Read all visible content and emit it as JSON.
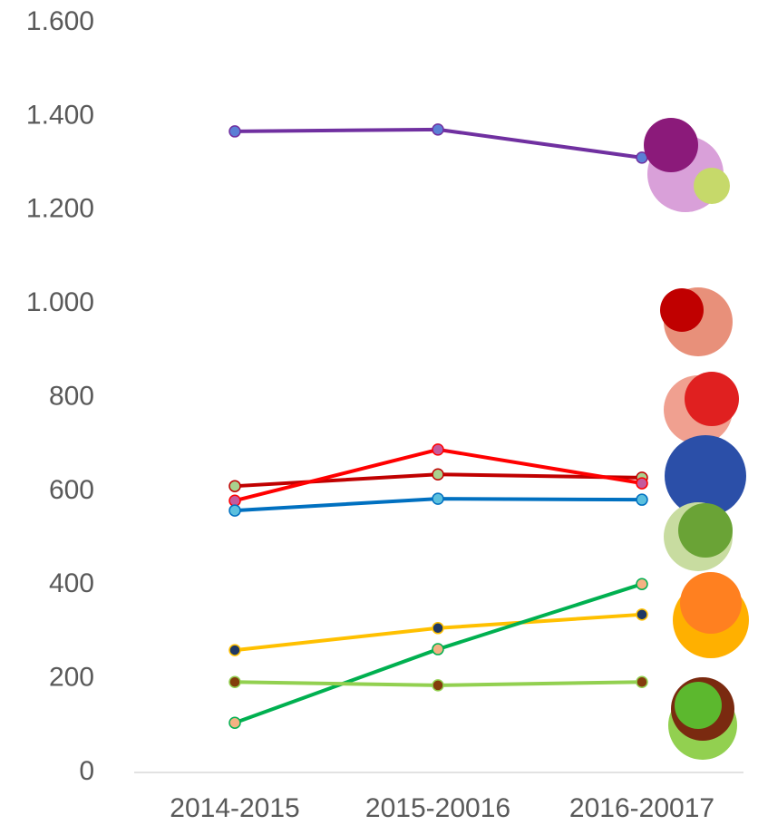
{
  "chart_data": {
    "type": "line",
    "categories": [
      "2014-2015",
      "2015-20016",
      "2016-20017"
    ],
    "ylim": [
      0,
      1600
    ],
    "yticks": [
      0,
      200,
      400,
      600,
      800,
      {
        "value": 1000,
        "label": "1.000"
      },
      {
        "value": 1200,
        "label": "1.200"
      },
      {
        "value": 1400,
        "label": "1.400"
      },
      {
        "value": 1600,
        "label": "1.600"
      }
    ],
    "grid": false,
    "series": [
      {
        "color": "#7030a0",
        "marker_color": "#5b7fd5",
        "values": [
          1368,
          1372,
          1312
        ]
      },
      {
        "color": "#c00000",
        "marker_color": "#a9d18e",
        "values": [
          611,
          636,
          629
        ]
      },
      {
        "color": "#ff0000",
        "marker_color": "#c55a9c",
        "values": [
          580,
          689,
          617
        ]
      },
      {
        "color": "#0070c0",
        "marker_color": "#5bc0de",
        "values": [
          559,
          584,
          582
        ]
      },
      {
        "color": "#ffc000",
        "marker_color": "#1f3864",
        "values": [
          261,
          308,
          337
        ]
      },
      {
        "color": "#00b050",
        "marker_color": "#f4b183",
        "values": [
          106,
          263,
          402
        ]
      },
      {
        "color": "#92d050",
        "marker_color": "#843c0c",
        "values": [
          193,
          186,
          193
        ]
      }
    ]
  }
}
